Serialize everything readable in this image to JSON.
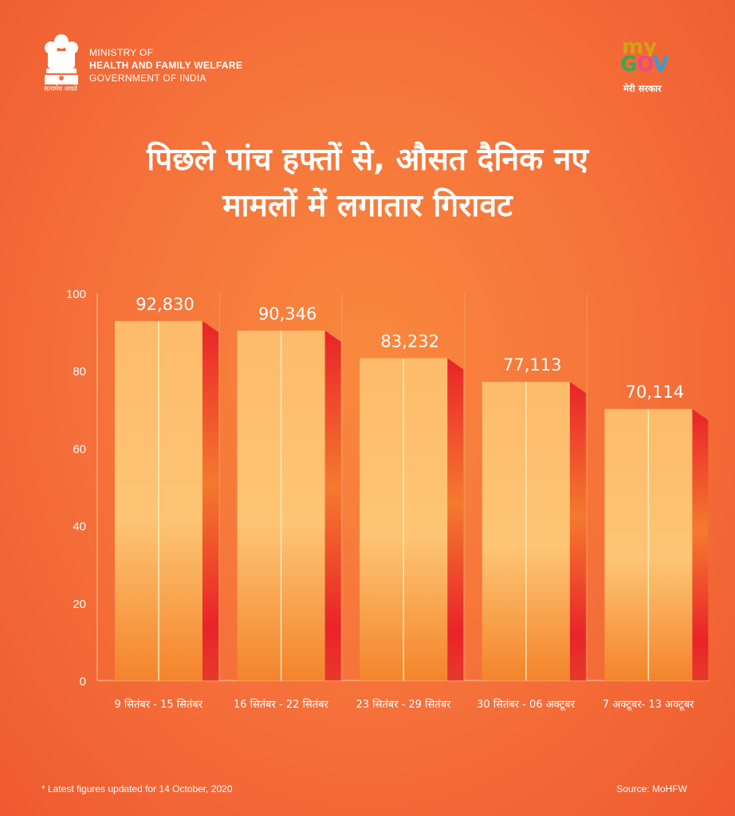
{
  "header": {
    "ministry_line1": "MINISTRY OF",
    "ministry_line2": "HEALTH AND FAMILY WELFARE",
    "ministry_line3": "GOVERNMENT OF INDIA",
    "emblem_motto": "सत्यमेव जयते",
    "mygov_my": "my",
    "mygov_gov": "GOV",
    "mygov_tagline": "मेरी सरकार"
  },
  "title": {
    "line1": "पिछले पांच हफ्तों से, औसत दैनिक नए",
    "line2": "मामलों में लगातार गिरावट"
  },
  "chart_data": {
    "type": "bar",
    "title": "पिछले पांच हफ्तों से, औसत दैनिक नए मामलों में लगातार गिरावट",
    "categories": [
      "9 सितंबर - 15 सितंबर",
      "16 सितंबर - 22 सितंबर",
      "23 सितंबर - 29 सितंबर",
      "30 सितंबर - 06 अक्टूबर",
      "7 अक्टूबर- 13 अक्टूबर"
    ],
    "values": [
      92830,
      90346,
      83232,
      77113,
      70114
    ],
    "value_labels": [
      "92,830",
      "90,346",
      "83,232",
      "77,113",
      "70,114"
    ],
    "y_ticks": [
      "0",
      "20",
      "40",
      "60",
      "80",
      "100"
    ],
    "ylim": [
      0,
      100
    ],
    "y_scale_divisor": 1000,
    "grid": true,
    "xlabel": "",
    "ylabel": ""
  },
  "colors": {
    "bar_top": "#fdbb6b",
    "bar_bottom": "#f4842b",
    "bar_side": "#e9232a",
    "axis": "#f7c7a0"
  },
  "footer": {
    "note": "* Latest figures updated for 14 October, 2020",
    "source": "Source: MoHFW"
  }
}
